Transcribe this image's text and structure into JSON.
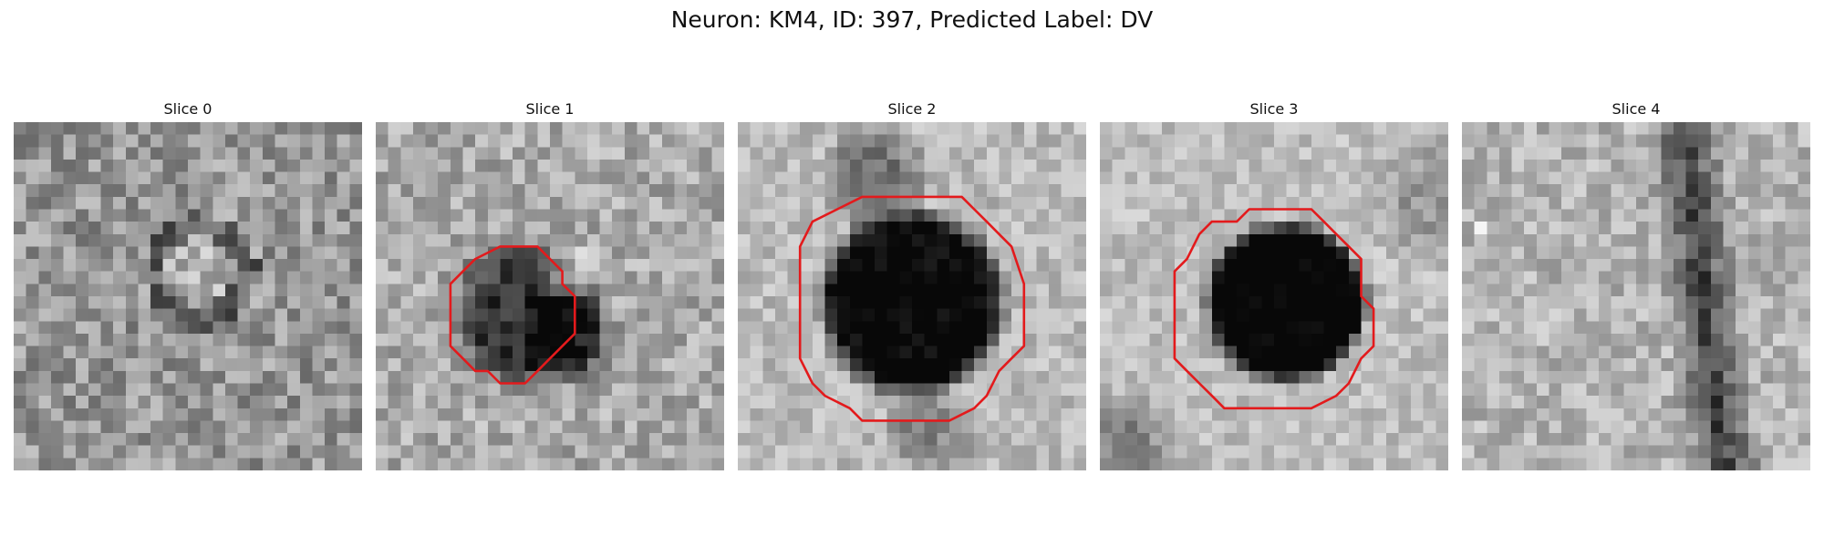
{
  "figure": {
    "title": "Neuron: KM4, ID: 397, Predicted Label: DV"
  },
  "slices": [
    {
      "title": "Slice 0",
      "has_contour": false
    },
    {
      "title": "Slice 1",
      "has_contour": true
    },
    {
      "title": "Slice 2",
      "has_contour": true
    },
    {
      "title": "Slice 3",
      "has_contour": true
    },
    {
      "title": "Slice 4",
      "has_contour": false
    }
  ],
  "colors": {
    "contour": "#e31a1c",
    "background": "#ffffff"
  },
  "colormap": "grayscale"
}
